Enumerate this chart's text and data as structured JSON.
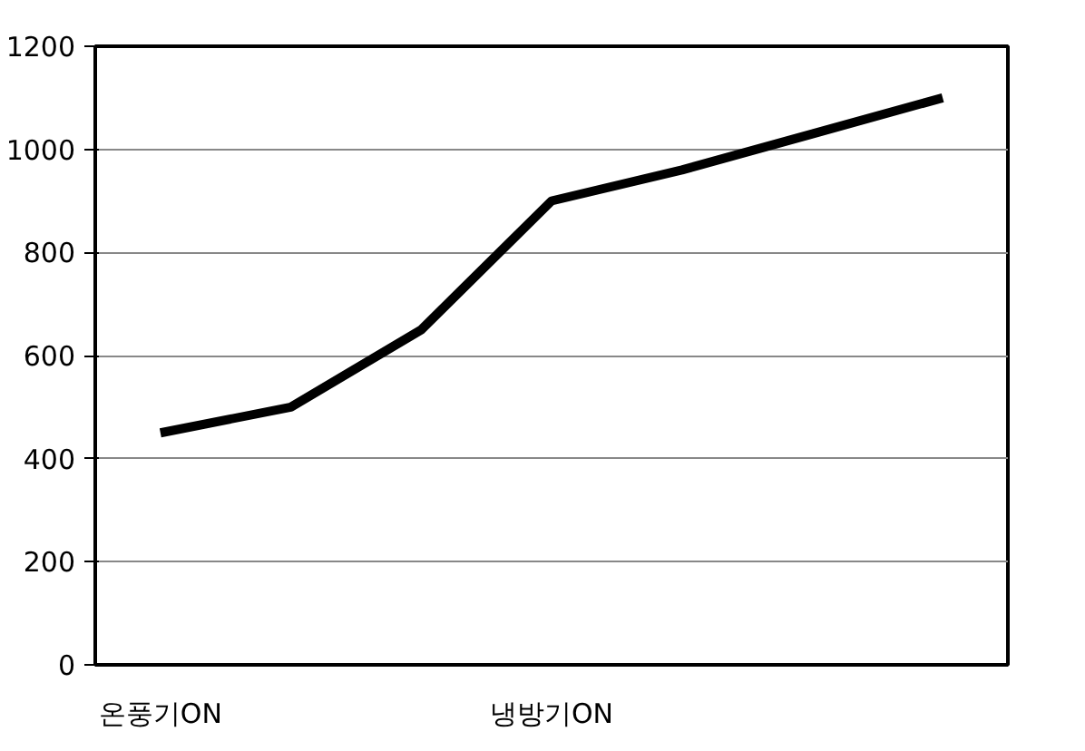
{
  "chart_data": {
    "type": "line",
    "categories": [
      "온풍기ON",
      null,
      null,
      "냉방기ON",
      null,
      null,
      null
    ],
    "series": [
      {
        "color": "#000000",
        "values": [
          450,
          500,
          650,
          900,
          960,
          1030,
          1100
        ]
      }
    ],
    "ylim": [
      0,
      1200
    ],
    "yticks": [
      0,
      200,
      400,
      600,
      800,
      1000,
      1200
    ],
    "grid": "y",
    "marker": "none",
    "line_style": "solid"
  }
}
